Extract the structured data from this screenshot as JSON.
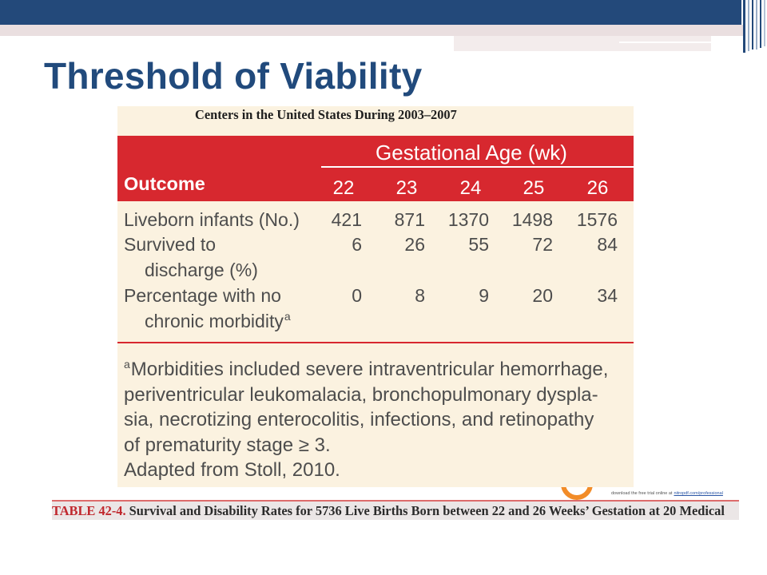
{
  "colors": {
    "top_bar": "#23497a",
    "title": "#214a7c",
    "table_background": "#fbf2e0",
    "table_red": "#d7282f",
    "table_text": "#4d4d4d",
    "caption_label": "#c0272d"
  },
  "slide": {
    "title": "Threshold of Viability"
  },
  "table": {
    "heading": "Centers in the United States During 2003–2007",
    "column_group_label": "Gestational Age (wk)",
    "row_header_label": "Outcome",
    "columns": [
      "22",
      "23",
      "24",
      "25",
      "26"
    ],
    "rows": [
      {
        "label": [
          "Liveborn infants (No.)"
        ],
        "values": [
          421,
          871,
          1370,
          1498,
          1576
        ]
      },
      {
        "label": [
          "Survived to",
          "discharge (%)"
        ],
        "values": [
          6,
          26,
          55,
          72,
          84
        ]
      },
      {
        "label": [
          "Percentage with no",
          "chronic morbidity"
        ],
        "footnote_marker": "a",
        "values": [
          0,
          8,
          9,
          20,
          34
        ]
      }
    ],
    "footnote": {
      "marker": "a",
      "lines": [
        "Morbidities included severe intraventricular hemorrhage,",
        "periventricular leukomalacia, bronchopulmonary dyspla-",
        "sia, necrotizing enterocolitis, infections, and retinopathy",
        "of prematurity stage ≥ 3.",
        "Adapted from Stoll, 2010."
      ]
    },
    "caption": {
      "label": "TABLE 42-4.",
      "text": "Survival and Disability Rates for 5736 Live Births Born between 22 and 26 Weeks’ Gestation at 20 Medical"
    }
  },
  "watermark": {
    "text": "download the free trial online at",
    "link": "nitropdf.com/professional"
  }
}
